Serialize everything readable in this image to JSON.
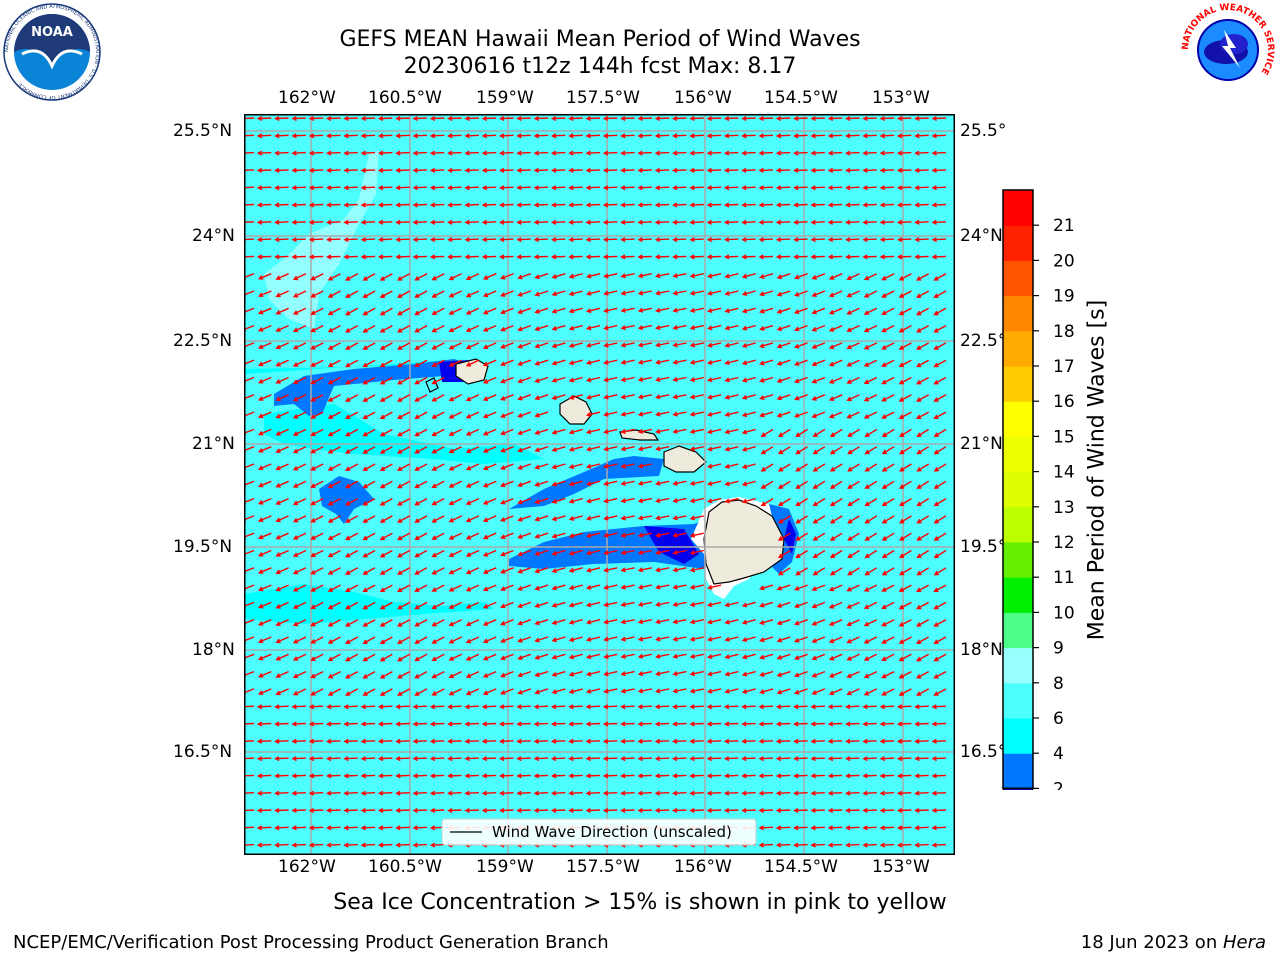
{
  "title": {
    "line1": "GEFS MEAN Hawaii Mean Period of Wind Waves",
    "line2": "20230616 t12z 144h fcst   Max: 8.17"
  },
  "map": {
    "lon_labels": [
      "162°W",
      "160.5°W",
      "159°W",
      "157.5°W",
      "156°W",
      "154.5°W",
      "153°W"
    ],
    "lat_labels": [
      "25.5°N",
      "24°N",
      "22.5°N",
      "21°N",
      "19.5°N",
      "18°N",
      "16.5°N"
    ],
    "legend_label": "Wind Wave Direction (unscaled)",
    "ocean_color": "#4dffff",
    "arrow_color": "#ff0000",
    "land_color": "#efebdc"
  },
  "colorbar": {
    "label": "Mean Period of Wind Waves [s]",
    "tick_labels": [
      "2",
      "4",
      "6",
      "8",
      "9",
      "10",
      "11",
      "12",
      "13",
      "14",
      "15",
      "16",
      "17",
      "18",
      "19",
      "20",
      "21"
    ],
    "colors": [
      "#0077ff",
      "#00ffff",
      "#4dffff",
      "#99ffff",
      "#4dff88",
      "#00ee00",
      "#66ee00",
      "#bbff00",
      "#ddff00",
      "#eeff00",
      "#ffff00",
      "#ffcc00",
      "#ffaa00",
      "#ff8800",
      "#ff5500",
      "#ff2200",
      "#ff0000"
    ],
    "under_color": "#0000ee"
  },
  "caption": "Sea Ice Concentration > 15% is shown in pink to yellow",
  "footer": {
    "left": "NCEP/EMC/Verification Post Processing Product Generation Branch",
    "right_prefix": "18 Jun 2023 on ",
    "right_host": "Hera"
  },
  "logos": {
    "noaa_text": "NOAA",
    "noaa_ring_text": "NATIONAL OCEANIC AND ATMOSPHERIC ADMINISTRATION · U.S. DEPARTMENT OF COMMERCE",
    "nws_ring_text": "NATIONAL WEATHER SERVICE"
  }
}
